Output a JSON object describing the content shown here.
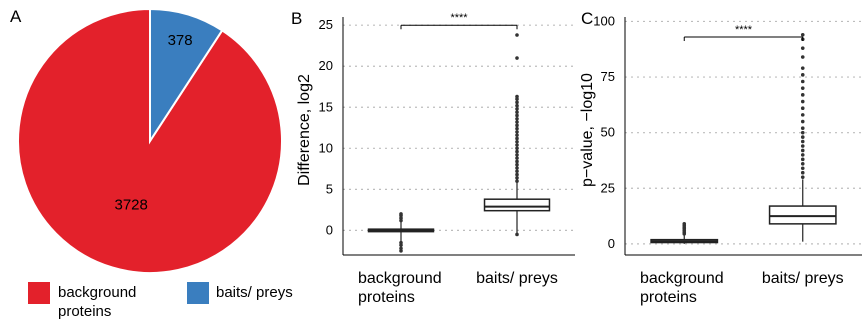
{
  "colors": {
    "background": "#E3212B",
    "baits": "#3A7EBF",
    "box_fill": "#ffffff",
    "box_stroke": "#222222",
    "point": "#333333",
    "grid": "#bdbdbd"
  },
  "chart_data": [
    {
      "panel": "A",
      "type": "pie",
      "slices": [
        {
          "label": "background proteins",
          "value": 3728,
          "value_label": "3728",
          "color": "#E3212B"
        },
        {
          "label": "baits/ preys",
          "value": 378,
          "value_label": "378",
          "color": "#3A7EBF"
        }
      ],
      "legend": [
        "background proteins",
        "baits/ preys"
      ],
      "legend_position": "bottom"
    },
    {
      "panel": "B",
      "type": "box",
      "ylabel": "Difference, log2",
      "ylim": [
        -3,
        26
      ],
      "yticks": [
        0,
        5,
        10,
        15,
        20,
        25
      ],
      "categories": [
        "background proteins",
        "baits/ preys"
      ],
      "grid": "horizontal-dotted",
      "significance": "****",
      "significance_y": 25,
      "boxes": [
        {
          "min": -2.5,
          "q1": -0.05,
          "median": 0.05,
          "q3": 0.15,
          "max": 2.0,
          "outliers": [
            -2.5,
            -2.2,
            -1.8,
            -1.5,
            1.2,
            1.5,
            1.8,
            2.0
          ]
        },
        {
          "min": -0.5,
          "q1": 2.4,
          "median": 2.9,
          "q3": 3.8,
          "max": 5.8,
          "outliers": [
            -0.5,
            6.0,
            6.4,
            6.8,
            7.2,
            7.6,
            8.0,
            8.4,
            8.8,
            9.2,
            9.6,
            10.0,
            10.4,
            10.8,
            11.2,
            11.6,
            12.0,
            12.4,
            12.8,
            13.2,
            13.6,
            14.0,
            14.4,
            14.8,
            15.2,
            15.6,
            16.0,
            16.3,
            21.0,
            23.8
          ]
        }
      ]
    },
    {
      "panel": "C",
      "type": "box",
      "ylabel": "p−value, −log10",
      "ylim": [
        -5,
        102
      ],
      "yticks": [
        0,
        25,
        50,
        75,
        100
      ],
      "categories": [
        "background proteins",
        "baits/ preys"
      ],
      "grid": "horizontal-dotted",
      "significance": "****",
      "significance_y": 93,
      "boxes": [
        {
          "min": 0,
          "q1": 0.6,
          "median": 1.2,
          "q3": 1.9,
          "max": 4.0,
          "outliers": [
            4.5,
            5.2,
            6.0,
            6.8,
            7.5,
            8.3,
            9.0
          ]
        },
        {
          "min": 1,
          "q1": 9,
          "median": 12.5,
          "q3": 17,
          "max": 29,
          "outliers": [
            30,
            32,
            34,
            36,
            38,
            40,
            42,
            44,
            46,
            48,
            50,
            52,
            55,
            58,
            61,
            64,
            67,
            70,
            73,
            76,
            79,
            84,
            88,
            92,
            94
          ]
        }
      ]
    }
  ]
}
